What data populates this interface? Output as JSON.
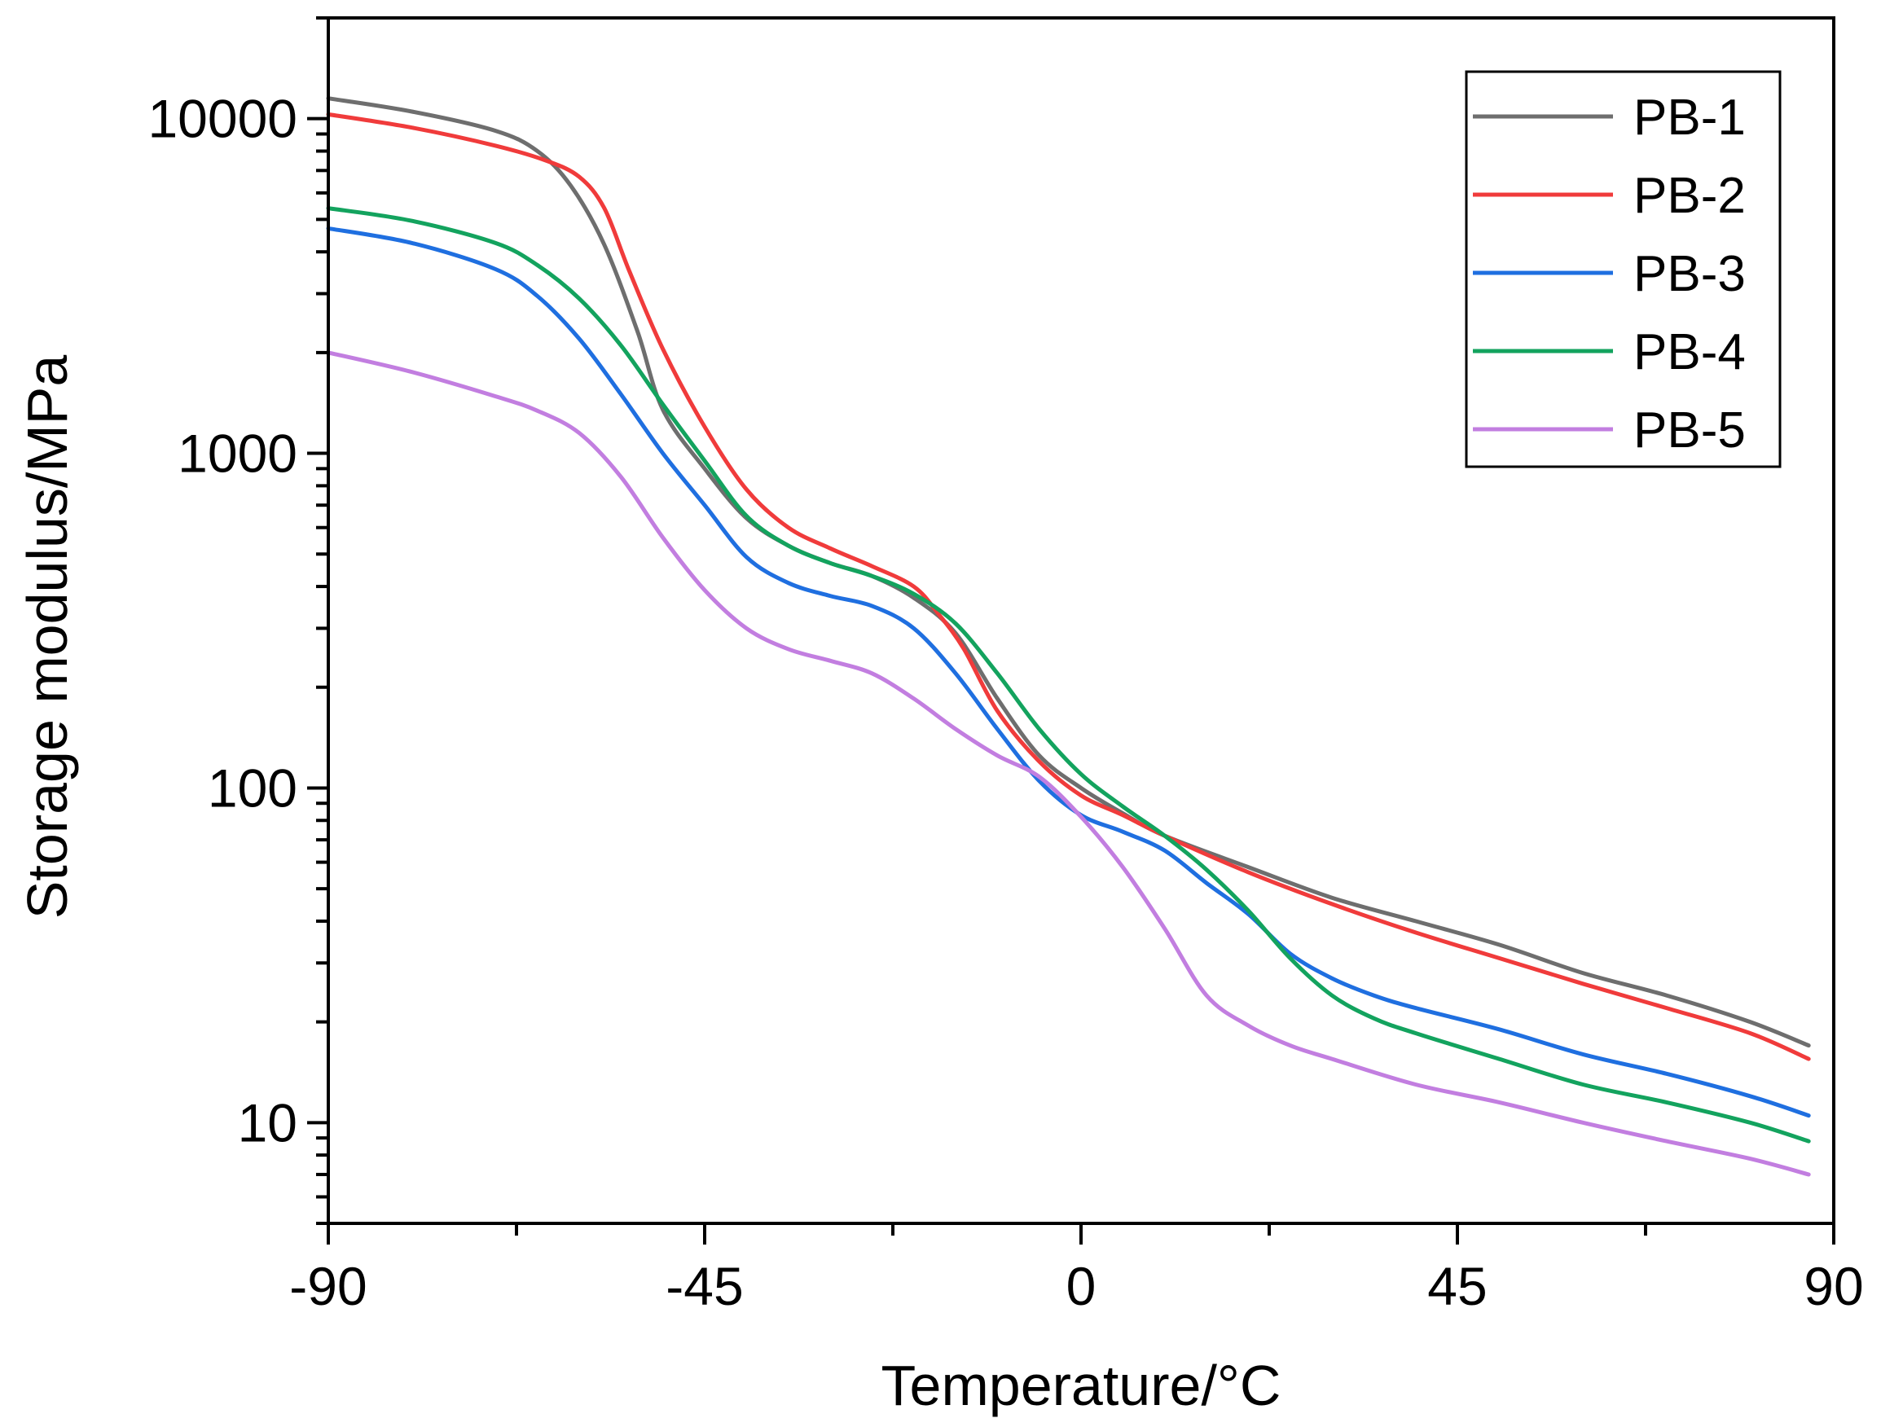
{
  "chart_data": {
    "type": "line",
    "title": "",
    "xlabel": "Temperature/°C",
    "ylabel": "Storage modulus/MPa",
    "xlim": [
      -90,
      90
    ],
    "ylim": [
      5,
      20000
    ],
    "yscale": "log",
    "grid": false,
    "legend_position": "top-right",
    "x_ticks": [
      -90,
      -45,
      0,
      45,
      90
    ],
    "x_tick_labels": [
      "-90",
      "-45",
      "0",
      "45",
      "90"
    ],
    "y_ticks": [
      10,
      100,
      1000,
      10000
    ],
    "y_tick_labels": [
      "10",
      "100",
      "1000",
      "10000"
    ],
    "series": [
      {
        "name": "PB-1",
        "color": "#6e6e6e",
        "points": [
          [
            -90,
            11500
          ],
          [
            -80,
            10500
          ],
          [
            -70,
            9200
          ],
          [
            -65,
            8000
          ],
          [
            -61,
            6300
          ],
          [
            -57,
            4200
          ],
          [
            -53,
            2300
          ],
          [
            -50,
            1350
          ],
          [
            -45,
            900
          ],
          [
            -40,
            640
          ],
          [
            -35,
            530
          ],
          [
            -30,
            470
          ],
          [
            -25,
            430
          ],
          [
            -20,
            370
          ],
          [
            -15,
            290
          ],
          [
            -10,
            185
          ],
          [
            -5,
            125
          ],
          [
            0,
            100
          ],
          [
            5,
            84
          ],
          [
            10,
            72
          ],
          [
            20,
            58
          ],
          [
            30,
            47
          ],
          [
            40,
            40
          ],
          [
            50,
            34
          ],
          [
            60,
            28
          ],
          [
            70,
            24
          ],
          [
            80,
            20
          ],
          [
            87,
            17
          ]
        ]
      },
      {
        "name": "PB-2",
        "color": "#f03b3b",
        "points": [
          [
            -90,
            10300
          ],
          [
            -80,
            9400
          ],
          [
            -70,
            8300
          ],
          [
            -64,
            7500
          ],
          [
            -60,
            6700
          ],
          [
            -57,
            5400
          ],
          [
            -54,
            3500
          ],
          [
            -50,
            2050
          ],
          [
            -45,
            1200
          ],
          [
            -40,
            780
          ],
          [
            -35,
            600
          ],
          [
            -30,
            520
          ],
          [
            -25,
            460
          ],
          [
            -20,
            400
          ],
          [
            -17,
            330
          ],
          [
            -14,
            260
          ],
          [
            -10,
            170
          ],
          [
            -5,
            120
          ],
          [
            0,
            95
          ],
          [
            5,
            83
          ],
          [
            10,
            72
          ],
          [
            20,
            56
          ],
          [
            30,
            45
          ],
          [
            40,
            37
          ],
          [
            50,
            31
          ],
          [
            60,
            26
          ],
          [
            70,
            22
          ],
          [
            80,
            18.5
          ],
          [
            87,
            15.5
          ]
        ]
      },
      {
        "name": "PB-3",
        "color": "#1f6fe0",
        "points": [
          [
            -90,
            4700
          ],
          [
            -80,
            4250
          ],
          [
            -70,
            3550
          ],
          [
            -65,
            2950
          ],
          [
            -60,
            2200
          ],
          [
            -55,
            1500
          ],
          [
            -50,
            1000
          ],
          [
            -45,
            700
          ],
          [
            -40,
            490
          ],
          [
            -35,
            410
          ],
          [
            -30,
            375
          ],
          [
            -25,
            350
          ],
          [
            -20,
            300
          ],
          [
            -15,
            220
          ],
          [
            -10,
            150
          ],
          [
            -5,
            105
          ],
          [
            0,
            83
          ],
          [
            5,
            74
          ],
          [
            10,
            65
          ],
          [
            15,
            52
          ],
          [
            20,
            42
          ],
          [
            25,
            32
          ],
          [
            30,
            27
          ],
          [
            35,
            24
          ],
          [
            40,
            22
          ],
          [
            50,
            19
          ],
          [
            60,
            16
          ],
          [
            70,
            14
          ],
          [
            80,
            12
          ],
          [
            87,
            10.5
          ]
        ]
      },
      {
        "name": "PB-4",
        "color": "#13a35e",
        "points": [
          [
            -90,
            5400
          ],
          [
            -80,
            4950
          ],
          [
            -70,
            4250
          ],
          [
            -65,
            3650
          ],
          [
            -60,
            2900
          ],
          [
            -55,
            2100
          ],
          [
            -50,
            1400
          ],
          [
            -45,
            950
          ],
          [
            -40,
            650
          ],
          [
            -35,
            530
          ],
          [
            -30,
            470
          ],
          [
            -25,
            430
          ],
          [
            -20,
            380
          ],
          [
            -15,
            310
          ],
          [
            -10,
            220
          ],
          [
            -5,
            150
          ],
          [
            0,
            110
          ],
          [
            5,
            88
          ],
          [
            10,
            72
          ],
          [
            15,
            57
          ],
          [
            20,
            43
          ],
          [
            25,
            31
          ],
          [
            30,
            24
          ],
          [
            35,
            20.5
          ],
          [
            40,
            18.5
          ],
          [
            50,
            15.5
          ],
          [
            60,
            13
          ],
          [
            70,
            11.5
          ],
          [
            80,
            10
          ],
          [
            87,
            8.8
          ]
        ]
      },
      {
        "name": "PB-5",
        "color": "#c27ee0",
        "points": [
          [
            -90,
            2000
          ],
          [
            -80,
            1750
          ],
          [
            -70,
            1480
          ],
          [
            -65,
            1340
          ],
          [
            -60,
            1150
          ],
          [
            -55,
            850
          ],
          [
            -50,
            560
          ],
          [
            -45,
            390
          ],
          [
            -40,
            300
          ],
          [
            -35,
            260
          ],
          [
            -30,
            240
          ],
          [
            -25,
            220
          ],
          [
            -20,
            185
          ],
          [
            -15,
            150
          ],
          [
            -10,
            125
          ],
          [
            -5,
            108
          ],
          [
            0,
            82
          ],
          [
            5,
            58
          ],
          [
            10,
            38
          ],
          [
            15,
            24
          ],
          [
            20,
            19.5
          ],
          [
            25,
            17
          ],
          [
            30,
            15.5
          ],
          [
            40,
            13
          ],
          [
            50,
            11.5
          ],
          [
            60,
            10
          ],
          [
            70,
            8.8
          ],
          [
            80,
            7.8
          ],
          [
            87,
            7
          ]
        ]
      }
    ]
  }
}
